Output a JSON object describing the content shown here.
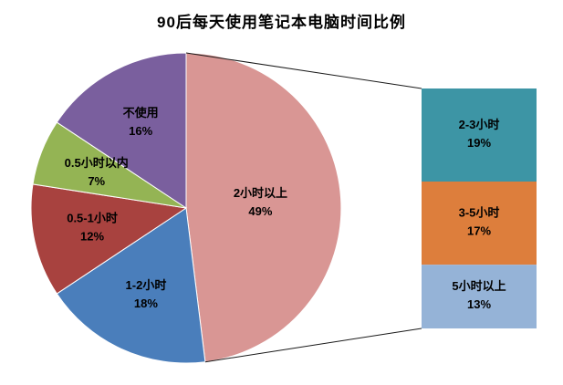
{
  "title": "90后每天使用笔记本电脑时间比例",
  "chart_data": {
    "type": "pie",
    "subtype": "bar-of-pie",
    "title": "90后每天使用笔记本电脑时间比例",
    "unit": "%",
    "legend": "none",
    "label_format": "name + percent",
    "slices": [
      {
        "label": "2小时以上",
        "value": 49,
        "color": "#d99694"
      },
      {
        "label": "1-2小时",
        "value": 18,
        "color": "#4a7ebb"
      },
      {
        "label": "0.5-1小时",
        "value": 12,
        "color": "#a8423f"
      },
      {
        "label": "0.5小时以内",
        "value": 7,
        "color": "#94b454"
      },
      {
        "label": "不使用",
        "value": 16,
        "color": "#7a5f9e"
      }
    ],
    "breakdown": {
      "parent_label": "2小时以上",
      "parent_value": 49,
      "segments": [
        {
          "label": "2-3小时",
          "value": 19,
          "color": "#3d95a5"
        },
        {
          "label": "3-5小时",
          "value": 17,
          "color": "#dd7e3c"
        },
        {
          "label": "5小时以上",
          "value": 13,
          "color": "#95b3d7"
        }
      ]
    },
    "connector_color": "#1a1a1a",
    "background": "#ffffff"
  }
}
